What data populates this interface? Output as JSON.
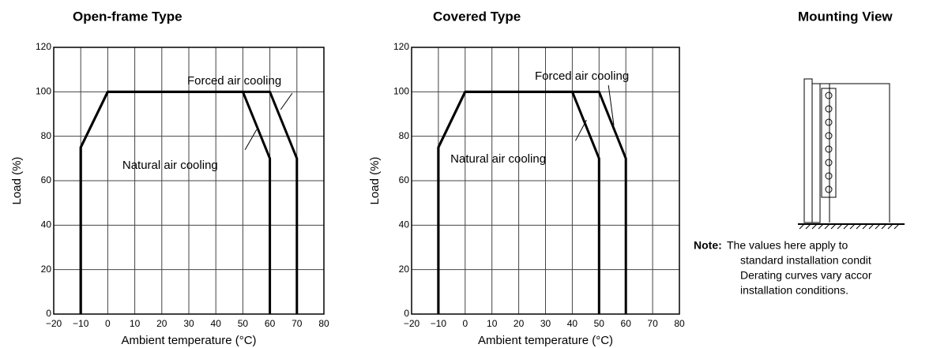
{
  "chart_data": [
    {
      "type": "line",
      "title": "Open-frame Type",
      "x_label": "Ambient temperature (°C)",
      "y_label": "Load (%)",
      "xlim": [
        -20,
        80
      ],
      "ylim": [
        0,
        120
      ],
      "xticks": [
        {
          "value": -20,
          "label": "−20"
        },
        {
          "value": -10,
          "label": "−10"
        },
        0,
        10,
        20,
        30,
        40,
        50,
        60,
        70,
        80
      ],
      "yticks": [
        0,
        20,
        40,
        60,
        80,
        100,
        120
      ],
      "grid": true,
      "series": [
        {
          "name": "Natural air cooling",
          "color": "#000000",
          "x": [
            -10,
            -10,
            0,
            50,
            60,
            60
          ],
          "values": [
            0,
            75,
            100,
            100,
            70,
            0
          ]
        },
        {
          "name": "Forced air cooling",
          "color": "#000000",
          "x": [
            -10,
            -10,
            0,
            60,
            70,
            70
          ],
          "values": [
            0,
            75,
            100,
            100,
            70,
            0
          ]
        }
      ]
    },
    {
      "type": "line",
      "title": "Covered Type",
      "x_label": "Ambient temperature (°C)",
      "y_label": "Load (%)",
      "xlim": [
        -20,
        80
      ],
      "ylim": [
        0,
        120
      ],
      "xticks": [
        {
          "value": -20,
          "label": "−20"
        },
        {
          "value": -10,
          "label": "−10"
        },
        0,
        10,
        20,
        30,
        40,
        50,
        60,
        70,
        80
      ],
      "yticks": [
        0,
        20,
        40,
        60,
        80,
        100,
        120
      ],
      "grid": true,
      "series": [
        {
          "name": "Natural air cooling",
          "color": "#000000",
          "x": [
            -10,
            -10,
            0,
            40,
            50,
            50
          ],
          "values": [
            0,
            75,
            100,
            100,
            70,
            0
          ]
        },
        {
          "name": "Forced air cooling",
          "color": "#000000",
          "x": [
            -10,
            -10,
            0,
            50,
            60,
            60
          ],
          "values": [
            0,
            75,
            100,
            100,
            70,
            0
          ]
        }
      ]
    }
  ],
  "mounting_view": {
    "title": "Mounting View",
    "note_label": "Note:",
    "note_lines": [
      "The values here apply to",
      "standard installation condit",
      "Derating curves vary accor",
      "installation conditions."
    ]
  }
}
